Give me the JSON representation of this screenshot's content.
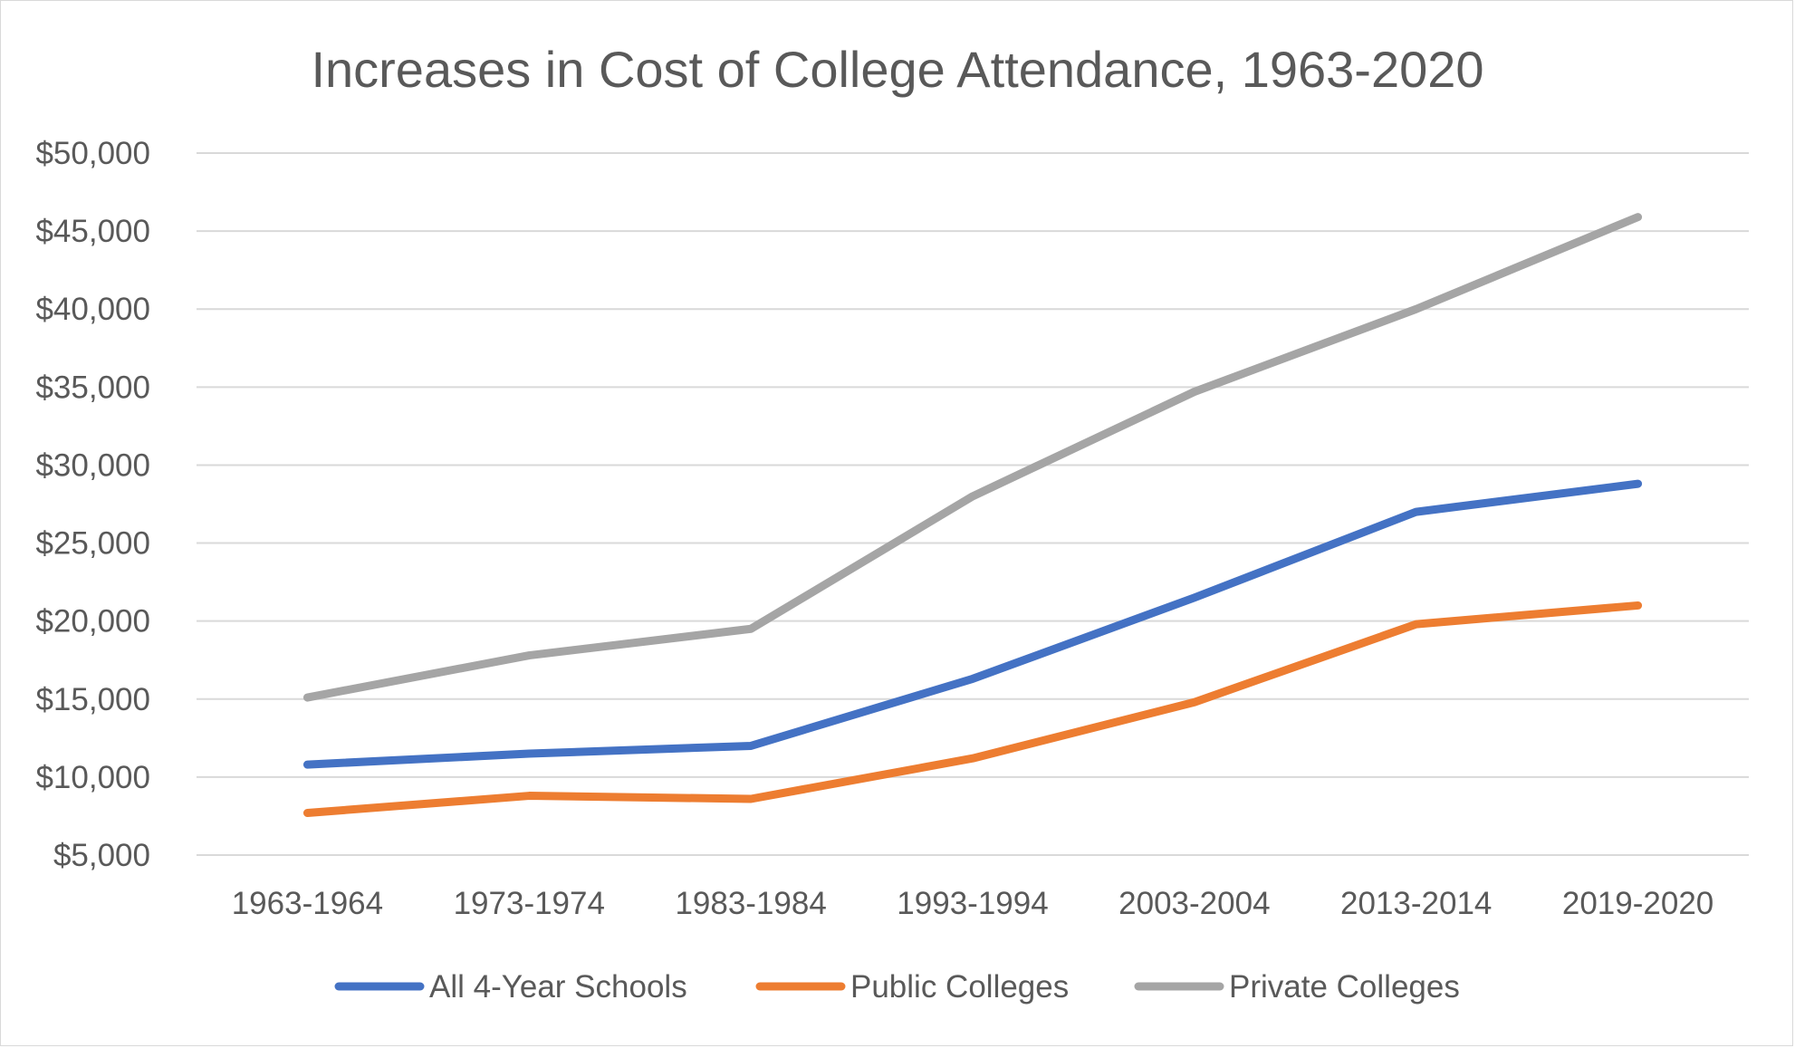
{
  "chart_data": {
    "type": "line",
    "title": "Increases in Cost of College Attendance, 1963-2020",
    "xlabel": "",
    "ylabel": "",
    "categories": [
      "1963-1964",
      "1973-1974",
      "1983-1984",
      "1993-1994",
      "2003-2004",
      "2013-2014",
      "2019-2020"
    ],
    "ylim": [
      5000,
      50000
    ],
    "yticks": [
      5000,
      10000,
      15000,
      20000,
      25000,
      30000,
      35000,
      40000,
      45000,
      50000
    ],
    "ytick_labels": [
      "$5,000",
      "$10,000",
      "$15,000",
      "$20,000",
      "$25,000",
      "$30,000",
      "$35,000",
      "$40,000",
      "$45,000",
      "$50,000"
    ],
    "grid": true,
    "legend_position": "bottom",
    "series": [
      {
        "name": "All 4-Year Schools",
        "color": "#4472c4",
        "values": [
          10800,
          11500,
          12000,
          16300,
          21500,
          27000,
          28800
        ]
      },
      {
        "name": "Public Colleges",
        "color": "#ed7d31",
        "values": [
          7700,
          8800,
          8600,
          11200,
          14800,
          19800,
          21000
        ]
      },
      {
        "name": "Private Colleges",
        "color": "#a5a5a5",
        "values": [
          15100,
          17800,
          19500,
          28000,
          34700,
          40000,
          45900
        ]
      }
    ]
  }
}
